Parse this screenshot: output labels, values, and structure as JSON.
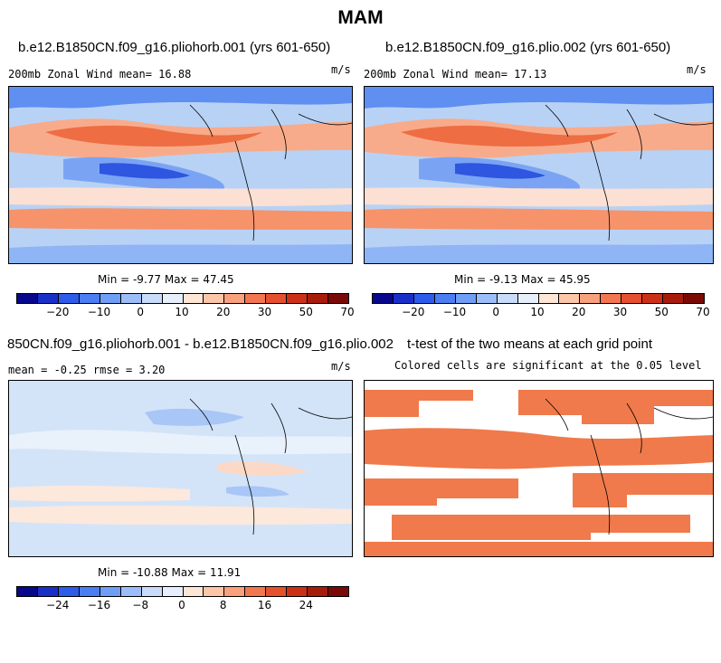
{
  "title": "MAM",
  "panels": [
    {
      "title": "b.e12.B1850CN.f09_g16.pliohorb.001 (yrs 601-650)",
      "subtitle": "200mb Zonal Wind  mean=  16.88",
      "units": "m/s",
      "stats": "Min =  -9.77 Max =  47.45"
    },
    {
      "title": "b.e12.B1850CN.f09_g16.plio.002 (yrs 601-650)",
      "subtitle": "200mb Zonal Wind  mean=  17.13",
      "units": "m/s",
      "stats": "Min =  -9.13 Max =  45.95"
    },
    {
      "title": "850CN.f09_g16.pliohorb.001 - b.e12.B1850CN.f09_g16.plio.002",
      "subtitle": "mean =  -0.25    rmse =   3.20",
      "units": "m/s",
      "stats": "Min = -10.88 Max =  11.91"
    },
    {
      "title": "t-test of the two means at each grid point",
      "subtitle": "Colored cells are significant at the 0.05 level"
    }
  ],
  "colorbar_main": {
    "colors": [
      "#08088c",
      "#1a2fc8",
      "#2d5bea",
      "#4a7ef2",
      "#6f9ef6",
      "#9dbdf8",
      "#c8dcf9",
      "#e6effa",
      "#fde6d6",
      "#fcc6a8",
      "#f9a07c",
      "#f27650",
      "#e5502e",
      "#cc3118",
      "#a81c0c",
      "#7a0a05"
    ],
    "ticks": [
      "−20",
      "−10",
      "0",
      "10",
      "20",
      "30",
      "50",
      "70"
    ]
  },
  "colorbar_diff": {
    "colors": [
      "#08088c",
      "#1a2fc8",
      "#2d5bea",
      "#4a7ef2",
      "#6f9ef6",
      "#9dbdf8",
      "#c8dcf9",
      "#e6effa",
      "#fde6d6",
      "#fcc6a8",
      "#f9a07c",
      "#f27650",
      "#e5502e",
      "#cc3118",
      "#a81c0c",
      "#7a0a05"
    ],
    "ticks": [
      "−24",
      "−16",
      "−8",
      "0",
      "8",
      "16",
      "24"
    ]
  }
}
